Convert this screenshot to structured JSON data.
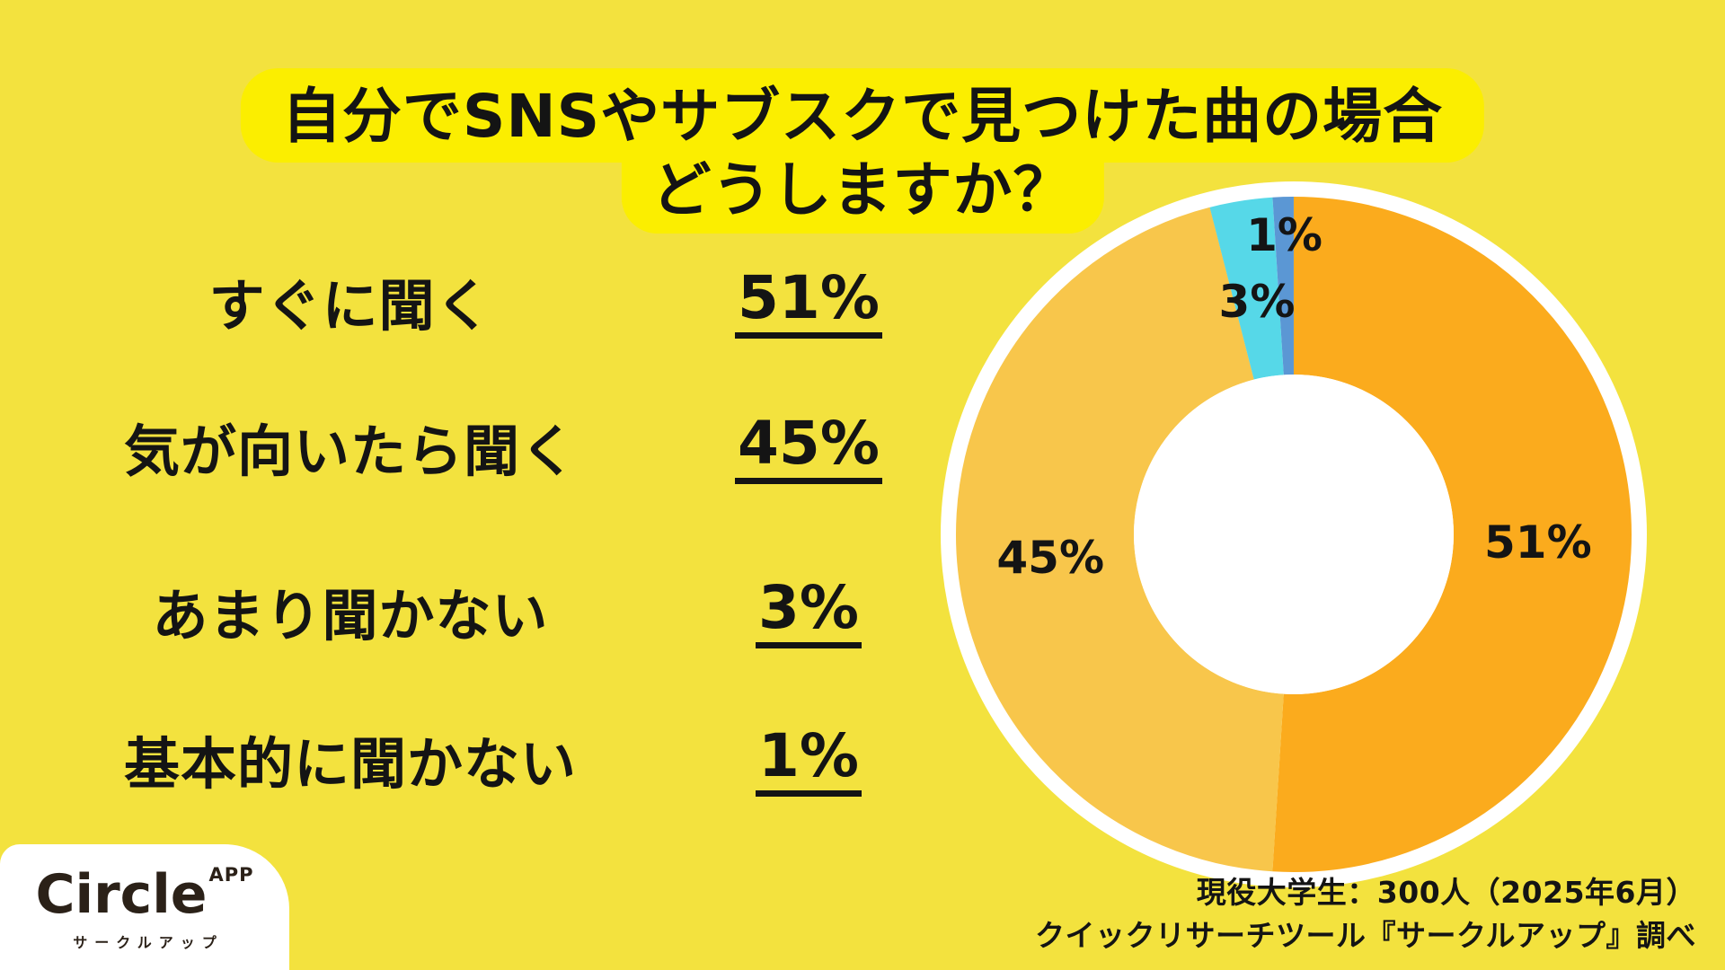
{
  "page": {
    "background_color": "#F3E23E",
    "text_color": "#141414"
  },
  "title": {
    "line1": "自分でSNSやサブスクで見つけた曲の場合",
    "line2": "どうしますか？",
    "highlight_color": "#FBEE00"
  },
  "options": [
    {
      "label": "すぐに聞く",
      "value": "51%"
    },
    {
      "label": "気が向いたら聞く",
      "value": "45%"
    },
    {
      "label": "あまり聞かない",
      "value": "3%"
    },
    {
      "label": "基本的に聞かない",
      "value": "1%"
    }
  ],
  "chart_data": {
    "type": "pie",
    "subtype": "donut",
    "categories": [
      "すぐに聞く",
      "気が向いたら聞く",
      "あまり聞かない",
      "基本的に聞かない"
    ],
    "values": [
      51,
      45,
      3,
      1
    ],
    "labels": [
      "51%",
      "45%",
      "3%",
      "1%"
    ],
    "colors": [
      "#FBAB1D",
      "#F8C64B",
      "#56D8E8",
      "#5B97D4"
    ],
    "start_angle_deg": -90,
    "direction": "clockwise",
    "outer_radius": 376,
    "inner_radius": 178,
    "ring_outline_color": "#FFFFFF",
    "center_color": "#FFFFFF",
    "label_color": "#141414",
    "label_radii": [
      272,
      272,
      262,
      333
    ]
  },
  "logo": {
    "name": "Circle",
    "sup": "APP",
    "subtitle": "サークルアップ",
    "text_color": "#2B2118",
    "card_color": "#FFFFFF"
  },
  "source": {
    "line1": "現役大学生：300人（2025年6月）",
    "line2": "クイックリサーチツール『サークルアップ』調べ"
  }
}
